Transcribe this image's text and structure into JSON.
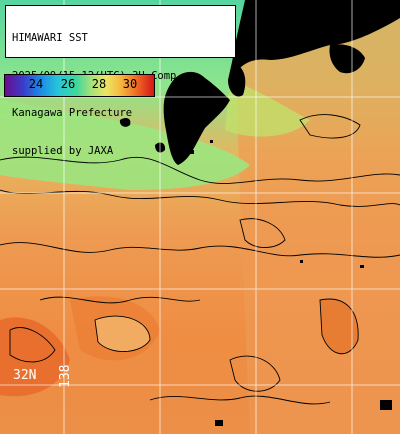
{
  "info": {
    "lines": [
      "HIMAWARI SST",
      "2025/09/15 12(UTC) 3H Comp.",
      "Kanagawa Prefecture",
      "supplied by JAXA"
    ]
  },
  "legend": {
    "ticks": [
      "24",
      "26",
      "28",
      "30"
    ],
    "colors": [
      "#6a0c8f",
      "#1f8ae6",
      "#40d79b",
      "#ece463",
      "#f06d25",
      "#d4161a"
    ]
  },
  "geo_labels": {
    "latitude": "32N",
    "longitude": "138"
  },
  "colors": {
    "land": "#000000",
    "warm_sea": "#ee9a52",
    "cool_sea": "#8fe58c",
    "grid": "#ffffff"
  }
}
